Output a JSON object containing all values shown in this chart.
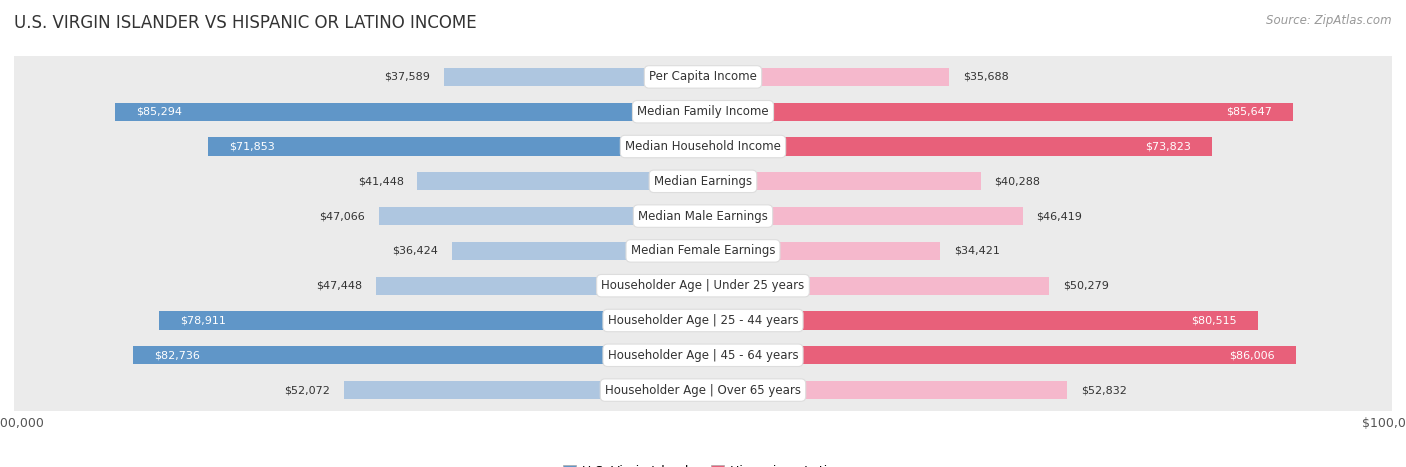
{
  "title": "U.S. VIRGIN ISLANDER VS HISPANIC OR LATINO INCOME",
  "source": "Source: ZipAtlas.com",
  "categories": [
    "Per Capita Income",
    "Median Family Income",
    "Median Household Income",
    "Median Earnings",
    "Median Male Earnings",
    "Median Female Earnings",
    "Householder Age | Under 25 years",
    "Householder Age | 25 - 44 years",
    "Householder Age | 45 - 64 years",
    "Householder Age | Over 65 years"
  ],
  "left_values": [
    37589,
    85294,
    71853,
    41448,
    47066,
    36424,
    47448,
    78911,
    82736,
    52072
  ],
  "right_values": [
    35688,
    85647,
    73823,
    40288,
    46419,
    34421,
    50279,
    80515,
    86006,
    52832
  ],
  "left_light_color": "#aec6e0",
  "left_dark_color": "#6096c8",
  "right_light_color": "#f5b8cc",
  "right_dark_color": "#e8607a",
  "left_label": "U.S. Virgin Islander",
  "right_label": "Hispanic or Latino",
  "axis_max": 100000,
  "row_bg_color": "#ebebeb",
  "label_bg_color": "#ffffff",
  "label_text_color": "#444444",
  "dark_threshold": 65000,
  "title_fontsize": 12,
  "source_fontsize": 8.5,
  "bar_label_fontsize": 8,
  "category_fontsize": 8.5,
  "legend_fontsize": 9
}
